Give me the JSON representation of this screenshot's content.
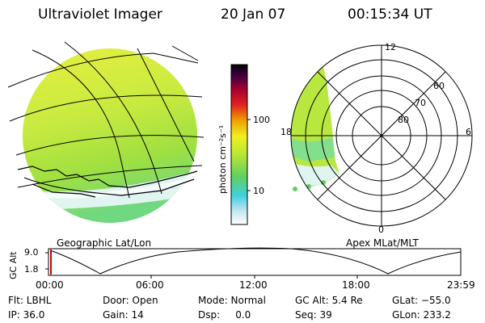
{
  "header": {
    "instrument": "Ultraviolet Imager",
    "date": "20 Jan 07",
    "time": "00:15:34 UT"
  },
  "colorbar": {
    "unit_label": "photon cm⁻²s⁻¹",
    "ticks": [
      "100",
      "10"
    ]
  },
  "panels": {
    "left_label": "Geographic Lat/Lon",
    "right_label": "Apex MLat/MLT"
  },
  "polar": {
    "mlt_labels": {
      "top": "12",
      "left": "18",
      "right": "6",
      "bottom": "0"
    },
    "lat_labels": [
      "60",
      "70",
      "80"
    ]
  },
  "altitude_plot": {
    "ylabel": "GC Alt",
    "yticks": [
      "9.0",
      "1.8"
    ],
    "xticks": [
      "00:00",
      "06:00",
      "12:00",
      "18:00",
      "23:59"
    ]
  },
  "status": {
    "flt": "Flt: LBHL",
    "ip": "IP: 36.0",
    "door": "Door: Open",
    "gain": "Gain: 14",
    "mode": "Mode: Normal",
    "dsp": "Dsp:     0.0",
    "gcalt": "GC Alt: 5.4 Re",
    "seq": "Seq: 39",
    "glat": "GLat: −55.0",
    "glon": "GLon: 233.2"
  },
  "colors": {
    "cyan": "#40d8d8",
    "green": "#a0e040",
    "yellow": "#e8f040",
    "red_marker": "#d00000"
  }
}
